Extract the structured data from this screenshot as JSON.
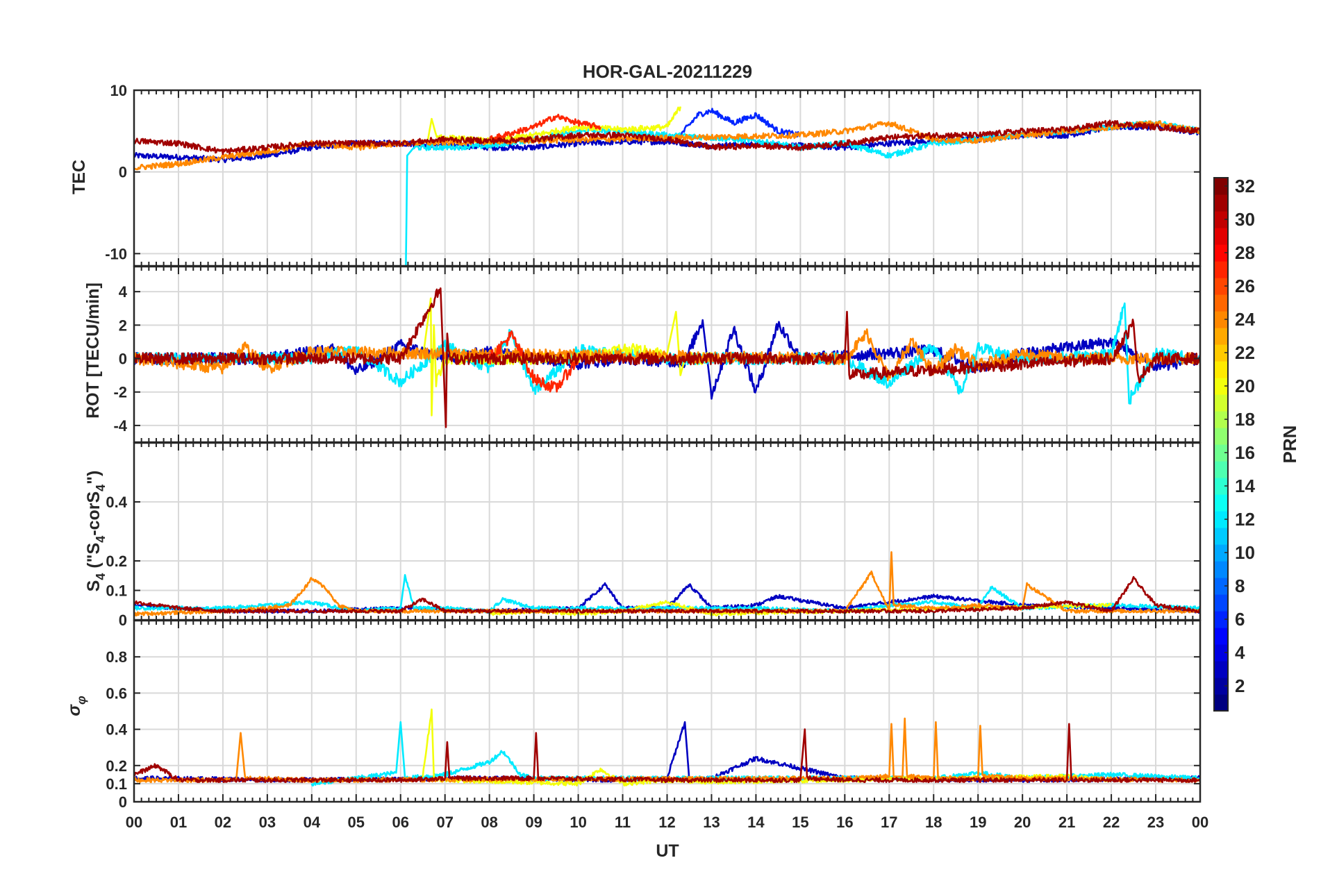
{
  "chart_data": {
    "type": "line",
    "title": "HOR-GAL-20211229",
    "xlabel": "UT",
    "x_tick_labels": [
      "00",
      "01",
      "02",
      "03",
      "04",
      "05",
      "06",
      "07",
      "08",
      "09",
      "10",
      "11",
      "12",
      "13",
      "14",
      "15",
      "16",
      "17",
      "18",
      "19",
      "20",
      "21",
      "22",
      "23",
      "00"
    ],
    "xlim_hours": [
      0,
      24
    ],
    "grid": true,
    "colorbar": {
      "label": "PRN",
      "range": [
        1,
        32
      ],
      "ticks": [
        2,
        4,
        6,
        8,
        10,
        12,
        14,
        16,
        18,
        20,
        22,
        24,
        26,
        28,
        30,
        32
      ],
      "colormap": "jet",
      "placement": "right"
    },
    "panels": [
      {
        "id": "tec",
        "ylabel": "TEC",
        "ylim": [
          -11.5,
          10
        ],
        "yticks": [
          -10,
          0,
          10
        ],
        "series": [
          {
            "prn": 3,
            "x": [
              0,
              1,
              2,
              3,
              4,
              5,
              6,
              7,
              8,
              9,
              10,
              11,
              12,
              13,
              14,
              15,
              16,
              17,
              18,
              19,
              20,
              21,
              22,
              23,
              24
            ],
            "y": [
              2,
              1.8,
              1.5,
              2,
              3,
              3.5,
              3.5,
              3.3,
              3,
              3,
              3.5,
              3.7,
              3.7,
              3.2,
              3.4,
              3.2,
              3,
              3.5,
              3.8,
              4,
              4.5,
              4.5,
              5.5,
              5.5,
              4.8
            ]
          },
          {
            "prn": 6,
            "x": [
              12.3,
              12.7,
              13,
              13.5,
              14,
              14.5,
              15
            ],
            "y": [
              4.5,
              7,
              7.5,
              6,
              7,
              5,
              4.5
            ]
          },
          {
            "prn": 12,
            "x": [
              6.12,
              6.15,
              6.3,
              7,
              8,
              9,
              10,
              11,
              12,
              13,
              14,
              15,
              16,
              17,
              18,
              19,
              20,
              21,
              22,
              23,
              24
            ],
            "y": [
              -11.5,
              2,
              3,
              3,
              3.2,
              4,
              5,
              5,
              4.5,
              4.2,
              3.8,
              3,
              3.5,
              2,
              3.5,
              4,
              4.5,
              5,
              5.5,
              6,
              5
            ]
          },
          {
            "prn": 20,
            "x": [
              6.6,
              6.7,
              6.8,
              7,
              8,
              9,
              10,
              11,
              12,
              12.3
            ],
            "y": [
              3.5,
              6.5,
              4.5,
              4.2,
              3.8,
              4.5,
              5.5,
              5.2,
              5.5,
              8
            ]
          },
          {
            "prn": 24,
            "x": [
              0,
              1,
              2,
              3,
              4,
              5,
              6,
              15,
              16,
              17,
              18,
              19,
              20,
              21,
              22,
              23,
              24
            ],
            "y": [
              0.5,
              1,
              1.8,
              2.5,
              3.5,
              3,
              3.5,
              4.5,
              5,
              6,
              4,
              3.8,
              4.5,
              5,
              5.5,
              6,
              5
            ]
          },
          {
            "prn": 27,
            "x": [
              8,
              9,
              9.5,
              10,
              10.5
            ],
            "y": [
              4,
              5.5,
              6.8,
              6,
              5.5
            ]
          },
          {
            "prn": 31,
            "x": [
              0,
              1,
              2,
              3,
              4,
              5,
              6,
              7,
              8,
              9,
              10,
              11,
              12,
              13,
              14,
              15,
              16,
              17,
              18,
              19,
              20,
              21,
              22,
              23,
              24
            ],
            "y": [
              3.8,
              3.5,
              2.5,
              3,
              3.5,
              3.5,
              3.5,
              4,
              3.8,
              4,
              4.5,
              4.5,
              4,
              3,
              3.2,
              3,
              3.5,
              4.2,
              4.5,
              4.5,
              5,
              5.2,
              6,
              5.5,
              5
            ]
          }
        ]
      },
      {
        "id": "rot",
        "ylabel": "ROT [TECU/min]",
        "ylim": [
          -5,
          5.5
        ],
        "yticks": [
          -4,
          -2,
          0,
          2,
          4
        ],
        "series": [
          {
            "prn": 3,
            "x": [
              0,
              3,
              4.5,
              5,
              6,
              7,
              8,
              10,
              11,
              12.4,
              12.8,
              13,
              13.5,
              14,
              14.5,
              15,
              18,
              19,
              20,
              22,
              23,
              24
            ],
            "y": [
              0,
              0,
              0.6,
              -0.8,
              0.8,
              0,
              0.4,
              -0.3,
              0,
              -0.2,
              2.3,
              -2.2,
              1.8,
              -2,
              2.1,
              0,
              0.5,
              -0.6,
              0.3,
              1,
              -0.5,
              0
            ]
          },
          {
            "prn": 12,
            "x": [
              0,
              4,
              5,
              6,
              7,
              8,
              8.5,
              9,
              10,
              12,
              16,
              17,
              18,
              18.6,
              19,
              20,
              22,
              22.3,
              22.4,
              23,
              24
            ],
            "y": [
              0,
              0,
              0.5,
              -1.4,
              0.8,
              -0.6,
              1.6,
              -2,
              0.5,
              0,
              0,
              -1.5,
              0.8,
              -2,
              0.6,
              0,
              0.2,
              3.3,
              -2.5,
              0.3,
              0
            ]
          },
          {
            "prn": 20,
            "x": [
              6.5,
              6.68,
              6.7,
              6.75,
              6.8,
              7,
              10,
              11,
              12,
              12.2,
              12.3,
              12.4,
              13
            ],
            "y": [
              0,
              3.6,
              -3.4,
              2,
              -1.5,
              0,
              0,
              0.6,
              0.3,
              2.8,
              -1,
              0,
              0
            ]
          },
          {
            "prn": 24,
            "x": [
              0,
              2,
              2.5,
              3,
              4,
              16,
              16.5,
              17,
              17.5,
              18,
              18.5,
              19,
              20,
              21,
              24
            ],
            "y": [
              0,
              -0.6,
              0.7,
              -0.6,
              0.4,
              0,
              1.5,
              -1.2,
              1,
              -0.8,
              0.6,
              -0.4,
              0.3,
              0,
              0
            ]
          },
          {
            "prn": 27,
            "x": [
              8,
              8.5,
              9,
              9.5,
              10
            ],
            "y": [
              0,
              1.4,
              -1.2,
              -1.8,
              0
            ]
          },
          {
            "prn": 31,
            "x": [
              0,
              3,
              6,
              6.9,
              7.02,
              7.05,
              7.1,
              8,
              14,
              15,
              16,
              16.05,
              16.1,
              22,
              22.5,
              22.6,
              23,
              24
            ],
            "y": [
              0,
              0,
              0,
              4.2,
              -4.1,
              1.5,
              0,
              0,
              0,
              0,
              0,
              2.8,
              -1,
              0,
              2.1,
              -1.2,
              0,
              0
            ]
          }
        ]
      },
      {
        "id": "s4",
        "ylabel": "S_4 (\"S_4-corS_4\")",
        "ylim": [
          0,
          0.6
        ],
        "yticks": [
          0,
          0.1,
          0.2,
          0.4
        ],
        "series": [
          {
            "prn": 3,
            "x": [
              0,
              2,
              4,
              6,
              8,
              10,
              10.6,
              11,
              12,
              12.5,
              13,
              14,
              14.5,
              16,
              18,
              20,
              22,
              24
            ],
            "y": [
              0.05,
              0.03,
              0.03,
              0.04,
              0.03,
              0.04,
              0.12,
              0.04,
              0.04,
              0.12,
              0.04,
              0.05,
              0.08,
              0.04,
              0.08,
              0.05,
              0.04,
              0.03
            ]
          },
          {
            "prn": 12,
            "x": [
              0,
              2,
              4,
              5,
              6,
              6.1,
              6.3,
              7,
              8,
              8.3,
              9,
              12,
              14,
              16,
              17,
              18,
              19,
              19.3,
              20,
              22,
              24
            ],
            "y": [
              0.04,
              0.04,
              0.06,
              0.03,
              0.04,
              0.15,
              0.04,
              0.04,
              0.03,
              0.07,
              0.04,
              0.04,
              0.04,
              0.03,
              0.05,
              0.06,
              0.04,
              0.11,
              0.04,
              0.05,
              0.04
            ]
          },
          {
            "prn": 20,
            "x": [
              8,
              9,
              10,
              11,
              12,
              13,
              22
            ],
            "y": [
              0.02,
              0.03,
              0.02,
              0.03,
              0.06,
              0.02,
              0.05
            ]
          },
          {
            "prn": 24,
            "x": [
              0,
              2,
              3,
              3.5,
              3.8,
              4,
              4.3,
              4.6,
              5,
              16,
              16.6,
              17,
              17.05,
              17.1,
              18,
              19,
              20,
              20.1,
              21,
              24
            ],
            "y": [
              0.02,
              0.03,
              0.04,
              0.05,
              0.1,
              0.14,
              0.11,
              0.05,
              0.03,
              0.03,
              0.16,
              0.03,
              0.23,
              0.05,
              0.04,
              0.05,
              0.04,
              0.12,
              0.03,
              0.03
            ]
          },
          {
            "prn": 31,
            "x": [
              0,
              1,
              2,
              4,
              6,
              6.5,
              7,
              8,
              10,
              12,
              14,
              16,
              18,
              20,
              21,
              22,
              22.5,
              23,
              24
            ],
            "y": [
              0.06,
              0.04,
              0.03,
              0.03,
              0.03,
              0.07,
              0.03,
              0.03,
              0.03,
              0.03,
              0.03,
              0.03,
              0.03,
              0.04,
              0.06,
              0.03,
              0.14,
              0.05,
              0.03
            ]
          }
        ]
      },
      {
        "id": "sigma",
        "ylabel": "σ_φ",
        "ylim": [
          0,
          1
        ],
        "yticks": [
          0,
          0.1,
          0.2,
          0.4,
          0.6,
          0.8
        ],
        "series": [
          {
            "prn": 3,
            "x": [
              0,
              4,
              8,
              11,
              12,
              12.4,
              12.5,
              13,
              14,
              16,
              20,
              24
            ],
            "y": [
              0.13,
              0.12,
              0.13,
              0.12,
              0.13,
              0.44,
              0.12,
              0.13,
              0.24,
              0.13,
              0.12,
              0.13
            ]
          },
          {
            "prn": 12,
            "x": [
              4,
              5,
              5.9,
              6,
              6.1,
              7,
              8,
              8.3,
              8.7,
              9,
              18,
              19,
              20,
              22,
              24
            ],
            "y": [
              0.1,
              0.13,
              0.16,
              0.44,
              0.13,
              0.15,
              0.22,
              0.28,
              0.15,
              0.13,
              0.13,
              0.16,
              0.13,
              0.15,
              0.13
            ]
          },
          {
            "prn": 20,
            "x": [
              6.5,
              6.7,
              6.75,
              7,
              10,
              10.5,
              11,
              12,
              13,
              21,
              22
            ],
            "y": [
              0.14,
              0.51,
              0.13,
              0.12,
              0.1,
              0.18,
              0.1,
              0.12,
              0.11,
              0.14,
              0.12
            ]
          },
          {
            "prn": 24,
            "x": [
              0,
              2,
              2.3,
              2.4,
              2.5,
              4,
              16,
              17,
              17.05,
              17.1,
              17.3,
              17.35,
              17.4,
              18,
              18.05,
              18.1,
              19,
              19.05,
              19.1,
              20,
              24
            ],
            "y": [
              0.12,
              0.12,
              0.12,
              0.38,
              0.13,
              0.12,
              0.13,
              0.14,
              0.43,
              0.14,
              0.14,
              0.46,
              0.14,
              0.13,
              0.44,
              0.13,
              0.13,
              0.42,
              0.14,
              0.13,
              0.12
            ]
          },
          {
            "prn": 31,
            "x": [
              0,
              0.5,
              1,
              2,
              6,
              7,
              7.05,
              7.1,
              9,
              9.05,
              9.1,
              12,
              15,
              15.1,
              15.15,
              16,
              21,
              21.05,
              21.1,
              24
            ],
            "y": [
              0.15,
              0.2,
              0.12,
              0.12,
              0.12,
              0.13,
              0.33,
              0.13,
              0.13,
              0.38,
              0.13,
              0.12,
              0.12,
              0.4,
              0.13,
              0.12,
              0.12,
              0.43,
              0.12,
              0.12
            ]
          }
        ]
      }
    ]
  }
}
